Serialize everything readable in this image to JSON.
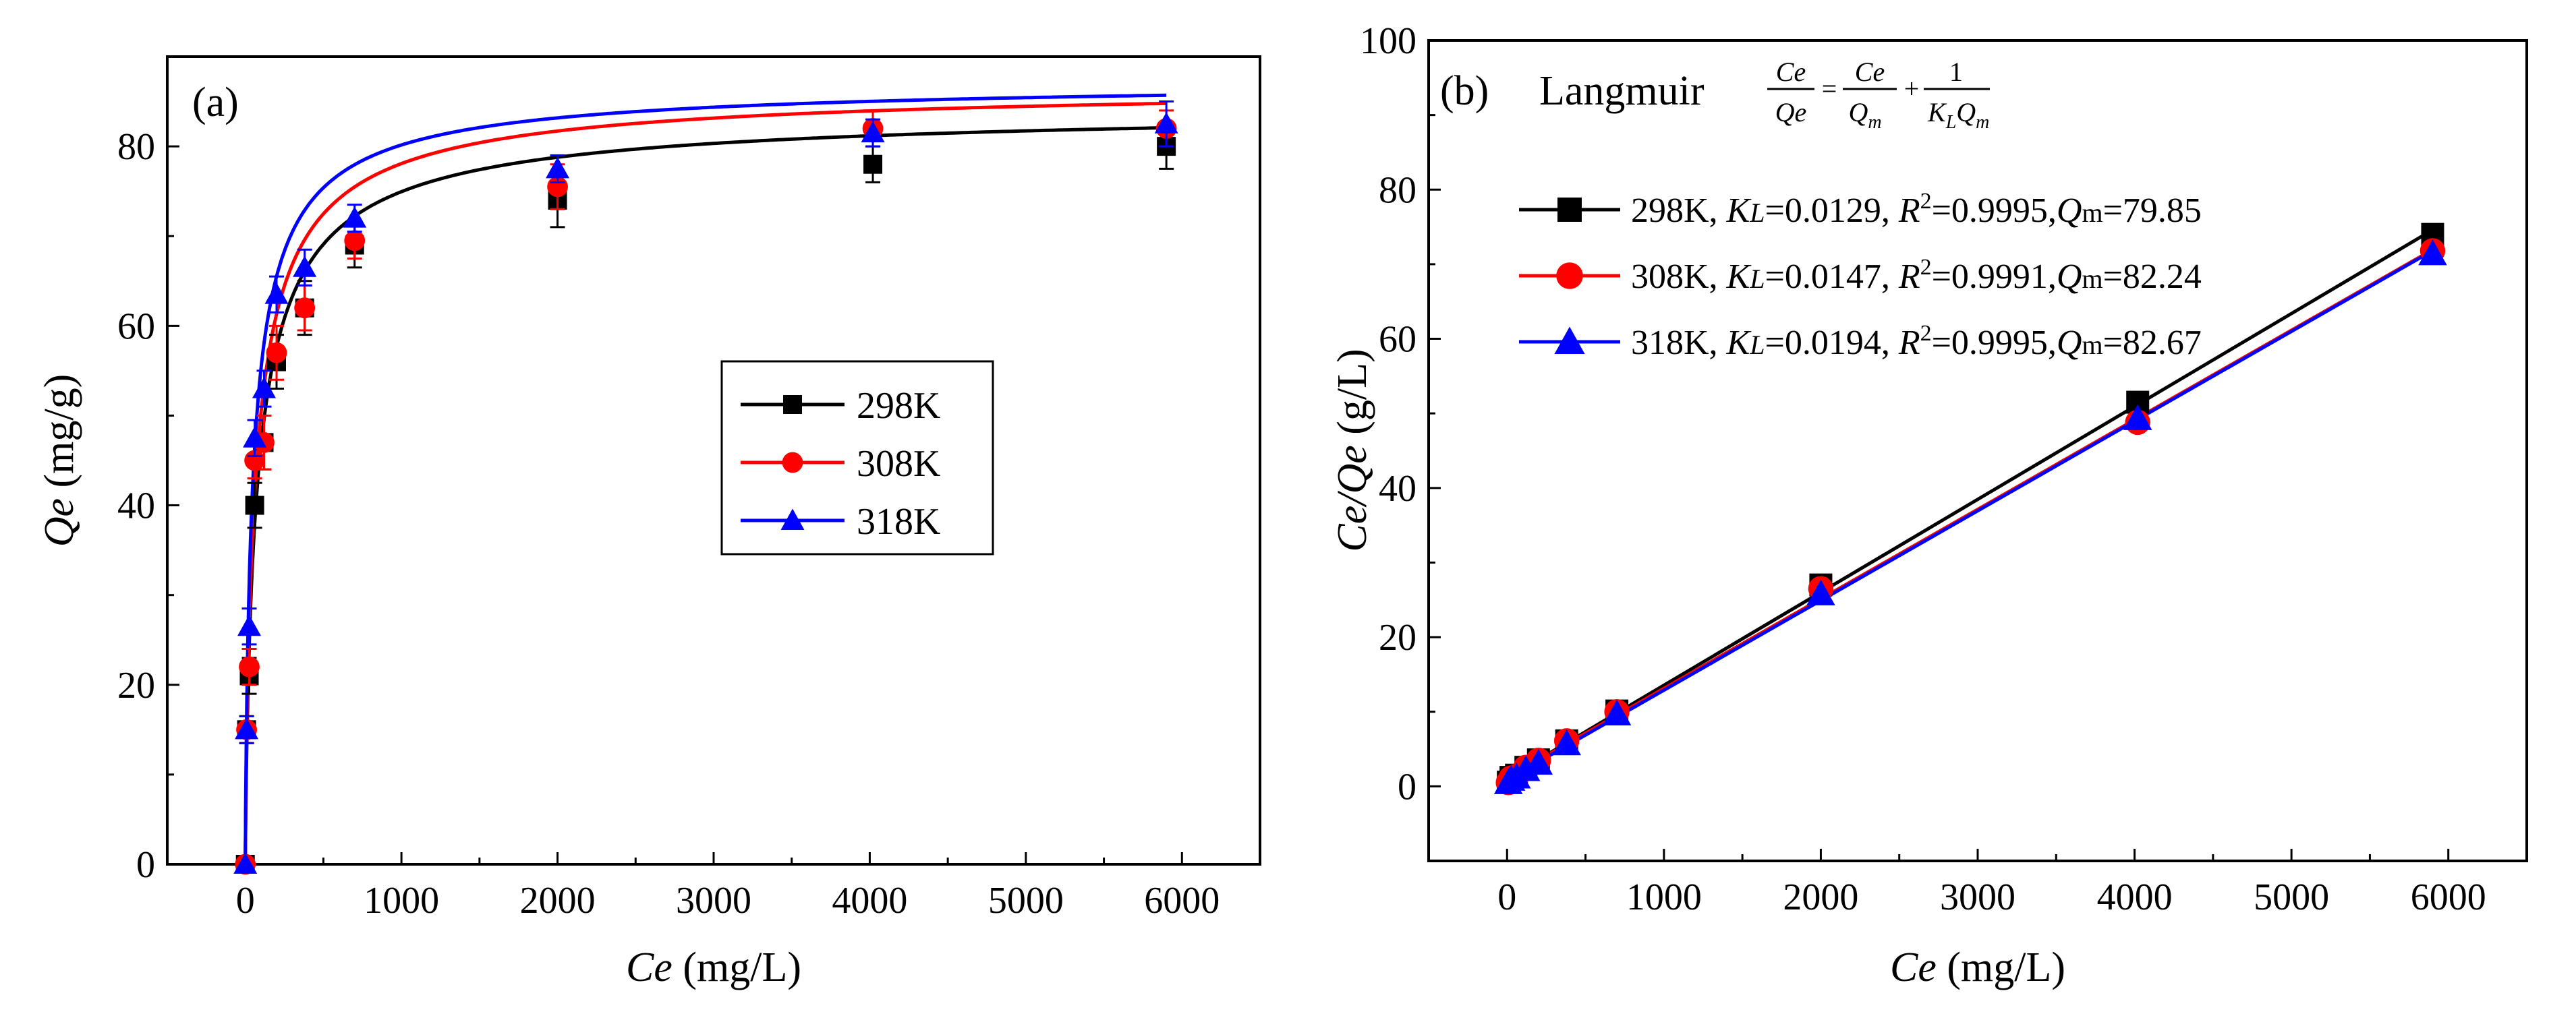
{
  "figure": {
    "panel_a_label": "(a)",
    "panel_b_label": "(b)",
    "model_name": "Langmuir"
  },
  "equation": {
    "lhs_num": "Ce",
    "lhs_den": "Qe",
    "equals": "=",
    "t1_num": "Ce",
    "t1_den": "Q",
    "t1_den_sub": "m",
    "plus": "+",
    "t2_num": "1",
    "t2_den_a": "K",
    "t2_den_a_sub": "L",
    "t2_den_b": "Q",
    "t2_den_b_sub": "m"
  },
  "legend_b_text": {
    "kl_main": "K",
    "kl_sub": "L",
    "r2_main": "R",
    "r2_sup": "2",
    "qm_main": "Q",
    "qm_sub": "m",
    "equals": "=",
    "comma": ", "
  },
  "colors": {
    "298K": "#000000",
    "308K": "#ff0000",
    "318K": "#0000ff"
  },
  "chart_data": [
    {
      "type": "line",
      "panel": "(a)",
      "title": "",
      "xlabel_italic": "Ce",
      "xlabel_rest": " (mg/L)",
      "ylabel_italic": "Qe",
      "ylabel_rest": " (mg/g)",
      "xlim": [
        -500,
        6500
      ],
      "ylim": [
        0,
        90
      ],
      "xticks": [
        0,
        1000,
        2000,
        3000,
        4000,
        5000,
        6000
      ],
      "yticks": [
        0,
        20,
        40,
        60,
        80
      ],
      "legend_position": "center-right",
      "series": [
        {
          "name": "298K",
          "marker": "square",
          "x": [
            0,
            8,
            25,
            60,
            120,
            200,
            380,
            700,
            2000,
            4020,
            5900
          ],
          "y": [
            0,
            15,
            21,
            40,
            47,
            56,
            62,
            69,
            74,
            78,
            80
          ],
          "err": [
            0,
            1.5,
            2,
            2.5,
            3,
            3,
            3,
            2.5,
            3,
            2,
            2.5
          ],
          "fit": {
            "Qm": 79.85,
            "KL": 0.0129,
            "n": 0.8
          }
        },
        {
          "name": "308K",
          "marker": "circle",
          "x": [
            0,
            8,
            25,
            60,
            120,
            200,
            380,
            700,
            2000,
            4020,
            5900
          ],
          "y": [
            0,
            15,
            22,
            45,
            47,
            57,
            62,
            69.5,
            75.5,
            82,
            82
          ],
          "err": [
            0,
            1.5,
            2,
            2,
            3,
            3,
            2.5,
            2,
            2.5,
            2,
            2
          ],
          "fit": {
            "Qm": 82.24,
            "KL": 0.0147,
            "n": 0.8
          }
        },
        {
          "name": "318K",
          "marker": "triangle",
          "x": [
            0,
            8,
            25,
            60,
            120,
            200,
            380,
            700,
            2000,
            4020,
            5900
          ],
          "y": [
            0,
            15,
            26.5,
            47.5,
            53,
            63.5,
            66.5,
            72,
            77.5,
            81.5,
            82.5
          ],
          "err": [
            0,
            1.5,
            2,
            2,
            2,
            2,
            2,
            1.5,
            1.5,
            1.5,
            2.5
          ],
          "fit": {
            "Qm": 82.67,
            "KL": 0.0194,
            "n": 0.8
          }
        }
      ]
    },
    {
      "type": "line",
      "panel": "(b)",
      "title": "Langmuir",
      "xlabel_italic": "Ce",
      "xlabel_rest": " (mg/L)",
      "ylabel_italic": "Ce/Qe",
      "ylabel_rest": " (g/L)",
      "xlim": [
        -500,
        6500
      ],
      "ylim": [
        -10,
        100
      ],
      "xticks": [
        0,
        1000,
        2000,
        3000,
        4000,
        5000,
        6000
      ],
      "yticks": [
        0,
        20,
        40,
        60,
        80,
        100
      ],
      "legend_position": "upper-left",
      "series": [
        {
          "name": "298K",
          "KL": "0.0129",
          "R2": "0.9995",
          "Qm": "79.85",
          "marker": "square",
          "x": [
            8,
            25,
            60,
            120,
            200,
            380,
            700,
            2000,
            4020,
            5900
          ],
          "y": [
            0.55,
            1.2,
            1.5,
            2.55,
            3.55,
            6.1,
            10.1,
            27,
            51.5,
            74
          ]
        },
        {
          "name": "308K",
          "KL": "0.0147",
          "R2": "0.9991",
          "Qm": "82.24",
          "marker": "circle",
          "x": [
            8,
            25,
            60,
            120,
            200,
            380,
            700,
            2000,
            4020,
            5900
          ],
          "y": [
            0.5,
            1.1,
            1.35,
            2.55,
            3.5,
            6.1,
            10,
            26.5,
            48.8,
            71.8
          ]
        },
        {
          "name": "318K",
          "KL": "0.0194",
          "R2": "0.9995",
          "Qm": "82.67",
          "marker": "triangle",
          "x": [
            8,
            25,
            60,
            120,
            200,
            380,
            700,
            2000,
            4020,
            5900
          ],
          "y": [
            0.5,
            0.95,
            1.25,
            2.25,
            3.1,
            5.7,
            9.7,
            25.8,
            49.3,
            71.4
          ]
        }
      ]
    }
  ]
}
